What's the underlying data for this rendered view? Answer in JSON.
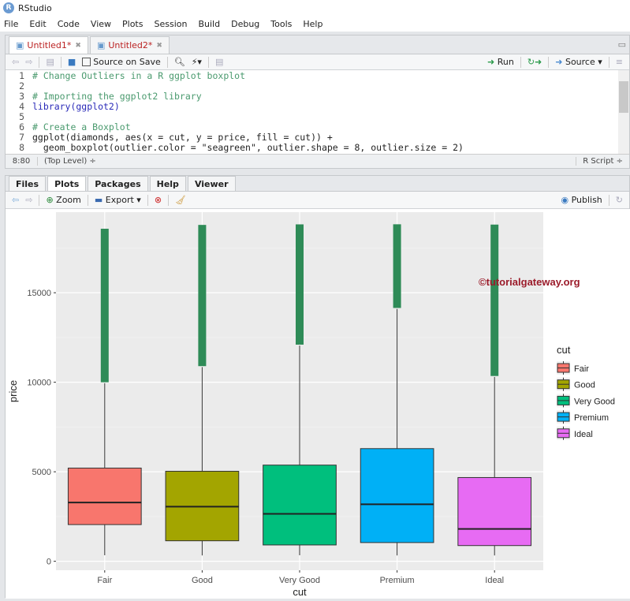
{
  "app_title": "RStudio",
  "menu": [
    "File",
    "Edit",
    "Code",
    "View",
    "Plots",
    "Session",
    "Build",
    "Debug",
    "Tools",
    "Help"
  ],
  "editor": {
    "tabs": [
      {
        "label": "Untitled1*"
      },
      {
        "label": "Untitled2*"
      }
    ],
    "toolbar": {
      "source_on_save": "Source on Save",
      "run": "Run",
      "source": "Source"
    },
    "lines": [
      {
        "n": "1",
        "text": "# Change Outliers in a R ggplot boxplot",
        "kind": "cm"
      },
      {
        "n": "2",
        "text": "",
        "kind": ""
      },
      {
        "n": "3",
        "text": "# Importing the ggplot2 library",
        "kind": "cm"
      },
      {
        "n": "4",
        "text": "library(ggplot2)",
        "kind": "kw"
      },
      {
        "n": "5",
        "text": "",
        "kind": ""
      },
      {
        "n": "6",
        "text": "# Create a Boxplot",
        "kind": "cm"
      },
      {
        "n": "7",
        "text": "ggplot(diamonds, aes(x = cut, y = price, fill = cut)) +",
        "kind": ""
      },
      {
        "n": "8",
        "text": "  geom_boxplot(outlier.color = \"seagreen\", outlier.shape = 8, outlier.size = 2)",
        "kind": ""
      }
    ],
    "status": {
      "position": "8:80",
      "scope": "(Top Level) ÷",
      "filetype": "R Script ÷"
    }
  },
  "plots_pane": {
    "tabs": [
      "Files",
      "Plots",
      "Packages",
      "Help",
      "Viewer"
    ],
    "active_tab": "Plots",
    "toolbar": {
      "zoom": "Zoom",
      "export": "Export ▾",
      "publish": "Publish"
    }
  },
  "watermark": "©tutorialgateway.org",
  "chart_data": {
    "type": "boxplot",
    "xlabel": "cut",
    "ylabel": "price",
    "ylim": [
      -500,
      19500
    ],
    "yticks": [
      0,
      5000,
      10000,
      15000
    ],
    "categories": [
      "Fair",
      "Good",
      "Very Good",
      "Premium",
      "Ideal"
    ],
    "colors": [
      "#F8766D",
      "#A3A500",
      "#00BF7D",
      "#00B0F6",
      "#E76BF3"
    ],
    "outlier_color": "#2E8B57",
    "series": [
      {
        "name": "Fair",
        "lower": 337,
        "q1": 2050,
        "median": 3282,
        "q3": 5206,
        "upper": 9950,
        "outliers": [
          10000,
          18574
        ]
      },
      {
        "name": "Good",
        "lower": 327,
        "q1": 1145,
        "median": 3050,
        "q3": 5028,
        "upper": 10850,
        "outliers": [
          10900,
          18788
        ]
      },
      {
        "name": "Very Good",
        "lower": 336,
        "q1": 912,
        "median": 2648,
        "q3": 5373,
        "upper": 12050,
        "outliers": [
          12100,
          18818
        ]
      },
      {
        "name": "Premium",
        "lower": 326,
        "q1": 1046,
        "median": 3185,
        "q3": 6294,
        "upper": 14100,
        "outliers": [
          14150,
          18823
        ]
      },
      {
        "name": "Ideal",
        "lower": 326,
        "q1": 878,
        "median": 1810,
        "q3": 4678,
        "upper": 10300,
        "outliers": [
          10350,
          18806
        ]
      }
    ],
    "legend": {
      "title": "cut",
      "position": "right"
    },
    "grid": true
  }
}
